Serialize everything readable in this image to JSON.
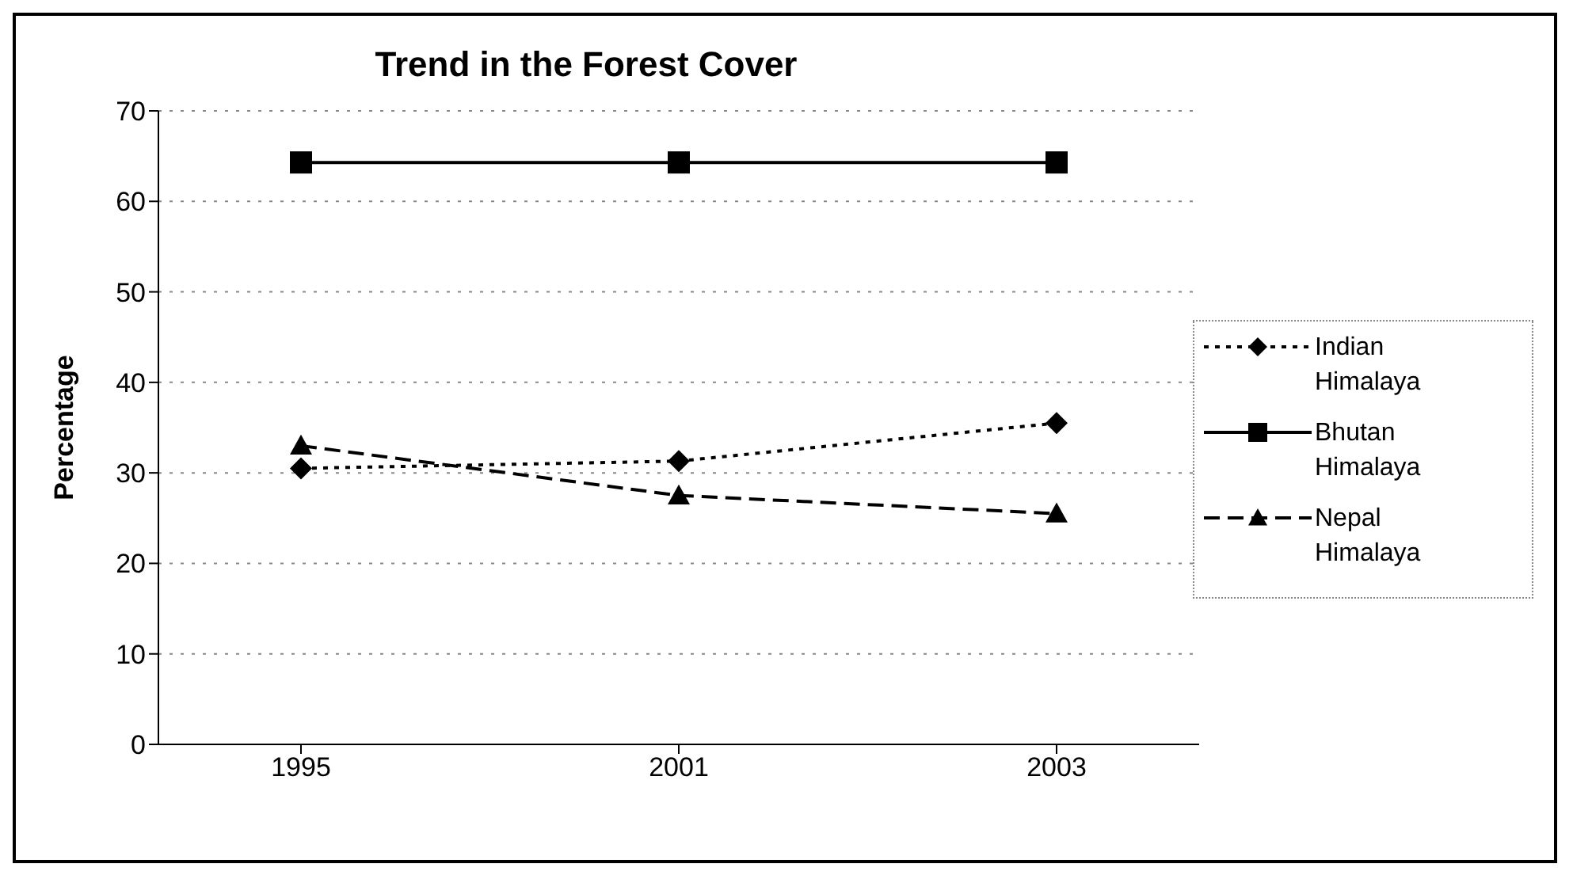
{
  "chart_data": {
    "type": "line",
    "title": "Trend in the Forest Cover",
    "ylabel": "Percentage",
    "categories": [
      "1995",
      "2001",
      "2003"
    ],
    "series": [
      {
        "name": "Indian Himalaya",
        "color": "#000000",
        "values": [
          30.5,
          31.3,
          35.5
        ],
        "marker": "diamond",
        "line_style": "dotted"
      },
      {
        "name": "Bhutan Himalaya",
        "color": "#000000",
        "values": [
          64.3,
          64.3,
          64.3
        ],
        "marker": "square",
        "line_style": "solid"
      },
      {
        "name": "Nepal Himalaya",
        "color": "#000000",
        "values": [
          33,
          27.5,
          25.5
        ],
        "marker": "triangle",
        "line_style": "dashed"
      }
    ],
    "ylim": [
      0,
      70
    ],
    "yticks": [
      0,
      10,
      20,
      30,
      40,
      50,
      60,
      70
    ],
    "grid": "y",
    "legend": "right"
  }
}
